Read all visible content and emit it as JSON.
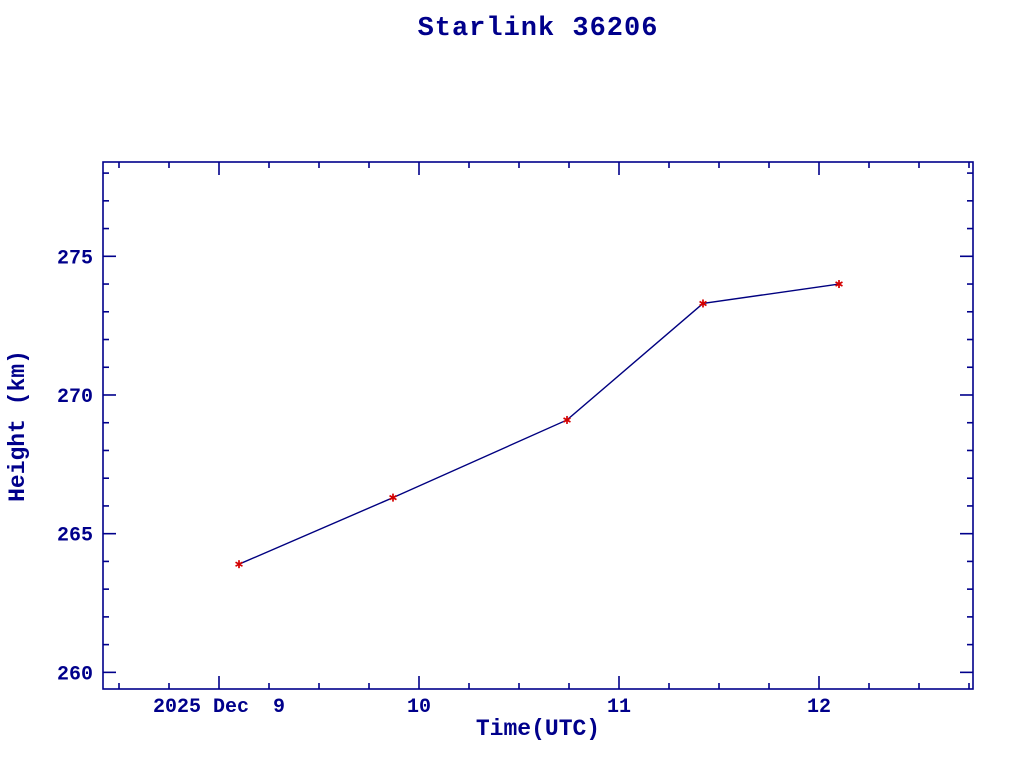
{
  "chart_data": {
    "type": "line",
    "title": "Starlink 36206",
    "xlabel": "Time(UTC)",
    "ylabel": "Height (km)",
    "x": [
      9.1,
      9.87,
      10.74,
      11.42,
      12.1
    ],
    "y": [
      263.9,
      266.3,
      269.1,
      273.3,
      274.0
    ],
    "x_unit": "day of 2025 Dec (UTC)",
    "xlim": [
      8.42,
      12.77
    ],
    "ylim": [
      259.4,
      278.4
    ],
    "x_major_ticks": [
      {
        "value": 9,
        "label": "2025 Dec  9"
      },
      {
        "value": 10,
        "label": "10"
      },
      {
        "value": 11,
        "label": "11"
      },
      {
        "value": 12,
        "label": "12"
      }
    ],
    "x_minor_step": 0.25,
    "y_major_ticks": [
      {
        "value": 260,
        "label": "260"
      },
      {
        "value": 265,
        "label": "265"
      },
      {
        "value": 270,
        "label": "270"
      },
      {
        "value": 275,
        "label": "275"
      }
    ],
    "y_minor_step": 1,
    "grid": "off",
    "legend": "none",
    "marker": "asterisk",
    "colors": {
      "axis": "#00008b",
      "text": "#00008b",
      "line": "#000080",
      "marker": "#d40000",
      "background": "#ffffff"
    }
  }
}
